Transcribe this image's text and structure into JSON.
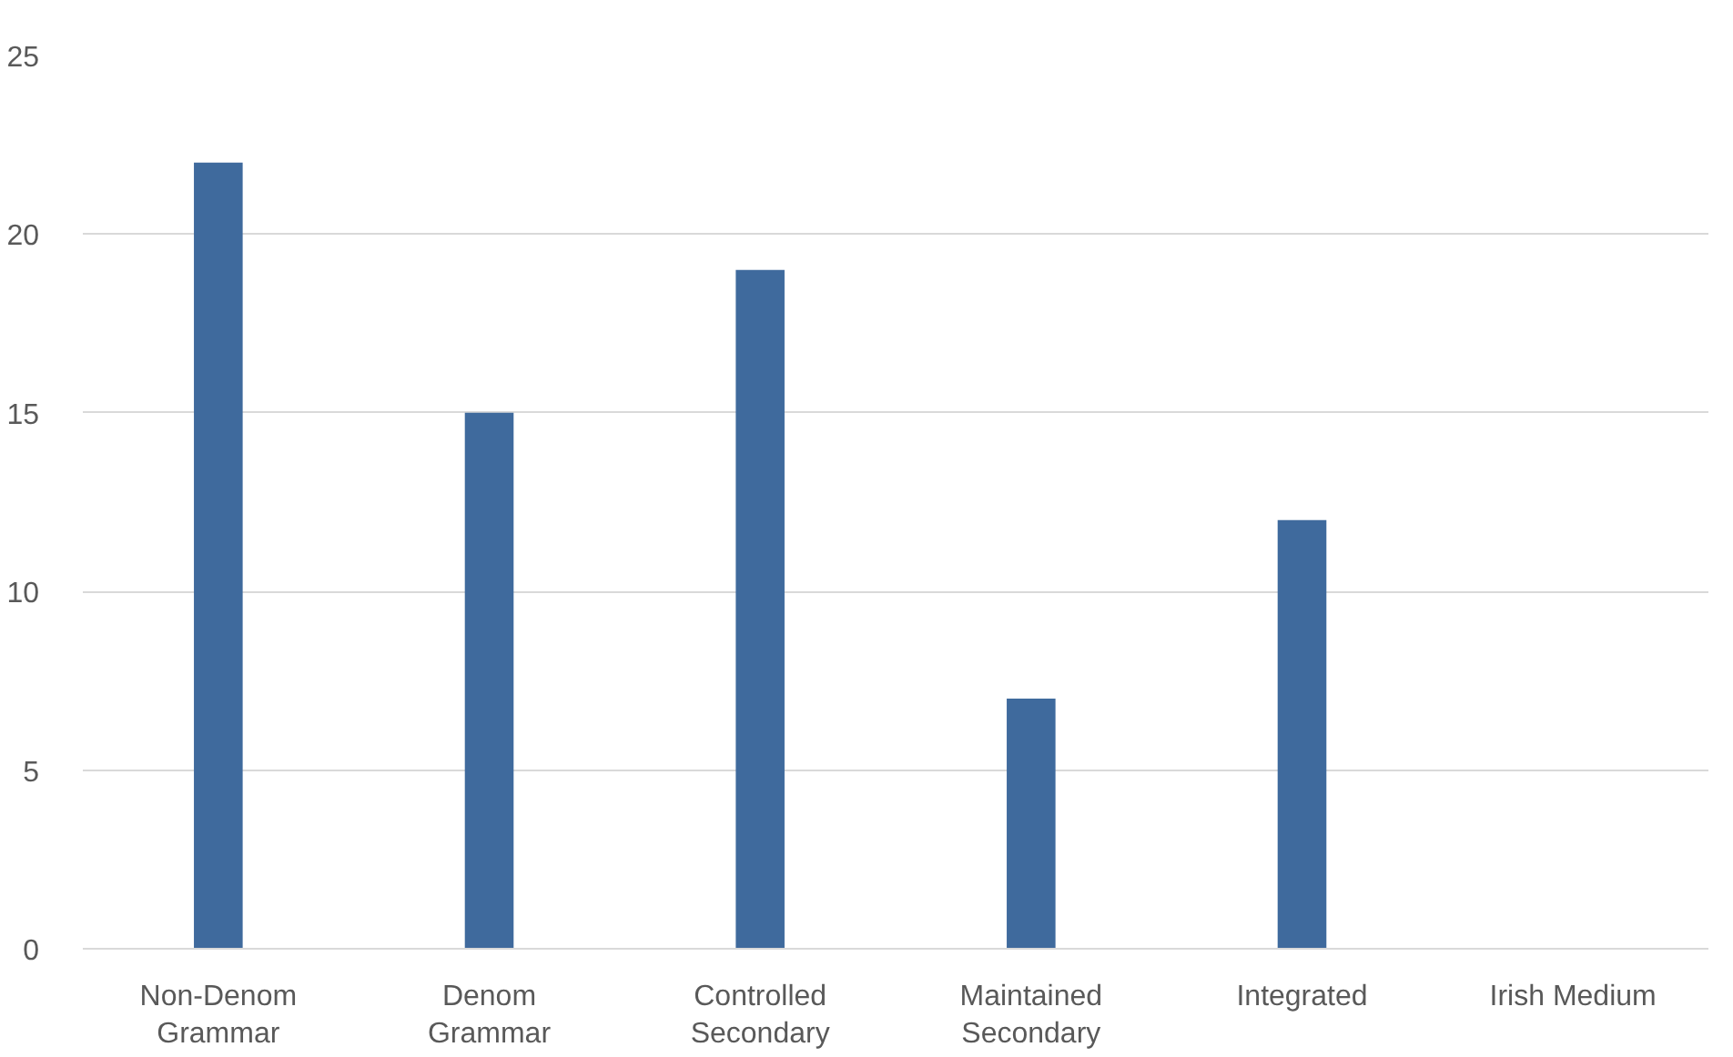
{
  "chart_data": {
    "type": "bar",
    "categories": [
      "Non-Denom Grammar",
      "Denom Grammar",
      "Controlled Secondary",
      "Maintained Secondary",
      "Integrated",
      "Irish Medium"
    ],
    "values": [
      22,
      15,
      19,
      7,
      12,
      0
    ],
    "color": "#3f6a9d",
    "ylim": [
      0,
      25
    ],
    "yticks": [
      0,
      5,
      10,
      15,
      20,
      25
    ],
    "grid": "y"
  }
}
